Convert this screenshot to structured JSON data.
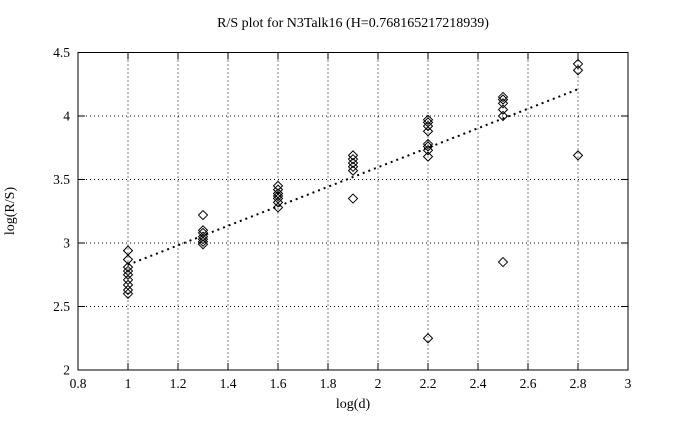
{
  "chart": {
    "title": "R/S plot for N3Talk16 (H=0.768165217218939)",
    "xlabel": "log(d)",
    "ylabel": "log(R/S)"
  },
  "colors": {
    "background": "#ffffff",
    "foreground": "#000000"
  },
  "chart_data": {
    "type": "scatter",
    "title": "R/S plot for N3Talk16 (H=0.768165217218939)",
    "xlabel": "log(d)",
    "ylabel": "log(R/S)",
    "xlim": [
      0.8,
      3.0
    ],
    "ylim": [
      2.0,
      4.5
    ],
    "grid": true,
    "marker": "open-diamond",
    "xticks": [
      {
        "value": 0.8,
        "label": "0.8"
      },
      {
        "value": 1.0,
        "label": "1"
      },
      {
        "value": 1.2,
        "label": "1.2"
      },
      {
        "value": 1.4,
        "label": "1.4"
      },
      {
        "value": 1.6,
        "label": "1.6"
      },
      {
        "value": 1.8,
        "label": "1.8"
      },
      {
        "value": 2.0,
        "label": "2"
      },
      {
        "value": 2.2,
        "label": "2.2"
      },
      {
        "value": 2.4,
        "label": "2.4"
      },
      {
        "value": 2.6,
        "label": "2.6"
      },
      {
        "value": 2.8,
        "label": "2.8"
      },
      {
        "value": 3.0,
        "label": "3"
      }
    ],
    "yticks": [
      {
        "value": 2.0,
        "label": "2"
      },
      {
        "value": 2.5,
        "label": "2.5"
      },
      {
        "value": 3.0,
        "label": "3"
      },
      {
        "value": 3.5,
        "label": "3.5"
      },
      {
        "value": 4.0,
        "label": "4"
      },
      {
        "value": 4.5,
        "label": "4.5"
      }
    ],
    "points": [
      [
        1.0,
        2.94
      ],
      [
        1.0,
        2.87
      ],
      [
        1.0,
        2.81
      ],
      [
        1.0,
        2.78
      ],
      [
        1.0,
        2.75
      ],
      [
        1.0,
        2.71
      ],
      [
        1.0,
        2.67
      ],
      [
        1.0,
        2.63
      ],
      [
        1.0,
        2.6
      ],
      [
        1.3,
        3.22
      ],
      [
        1.3,
        3.1
      ],
      [
        1.3,
        3.08
      ],
      [
        1.3,
        3.05
      ],
      [
        1.3,
        3.03
      ],
      [
        1.3,
        3.01
      ],
      [
        1.3,
        2.99
      ],
      [
        1.6,
        3.45
      ],
      [
        1.6,
        3.42
      ],
      [
        1.6,
        3.39
      ],
      [
        1.6,
        3.37
      ],
      [
        1.6,
        3.35
      ],
      [
        1.6,
        3.32
      ],
      [
        1.6,
        3.28
      ],
      [
        1.9,
        3.69
      ],
      [
        1.9,
        3.66
      ],
      [
        1.9,
        3.63
      ],
      [
        1.9,
        3.6
      ],
      [
        1.9,
        3.57
      ],
      [
        1.9,
        3.35
      ],
      [
        2.2,
        3.97
      ],
      [
        2.2,
        3.95
      ],
      [
        2.2,
        3.92
      ],
      [
        2.2,
        3.88
      ],
      [
        2.2,
        3.78
      ],
      [
        2.2,
        3.76
      ],
      [
        2.2,
        3.73
      ],
      [
        2.2,
        3.68
      ],
      [
        2.2,
        2.25
      ],
      [
        2.5,
        4.15
      ],
      [
        2.5,
        4.13
      ],
      [
        2.5,
        4.1
      ],
      [
        2.5,
        4.05
      ],
      [
        2.5,
        4.0
      ],
      [
        2.5,
        2.85
      ],
      [
        2.8,
        4.41
      ],
      [
        2.8,
        4.36
      ],
      [
        2.8,
        3.69
      ]
    ],
    "fit_line": {
      "slope": 0.768165217218939,
      "intercept": 2.06,
      "x_start": 1.0,
      "x_end": 2.8,
      "style": "dotted"
    }
  }
}
